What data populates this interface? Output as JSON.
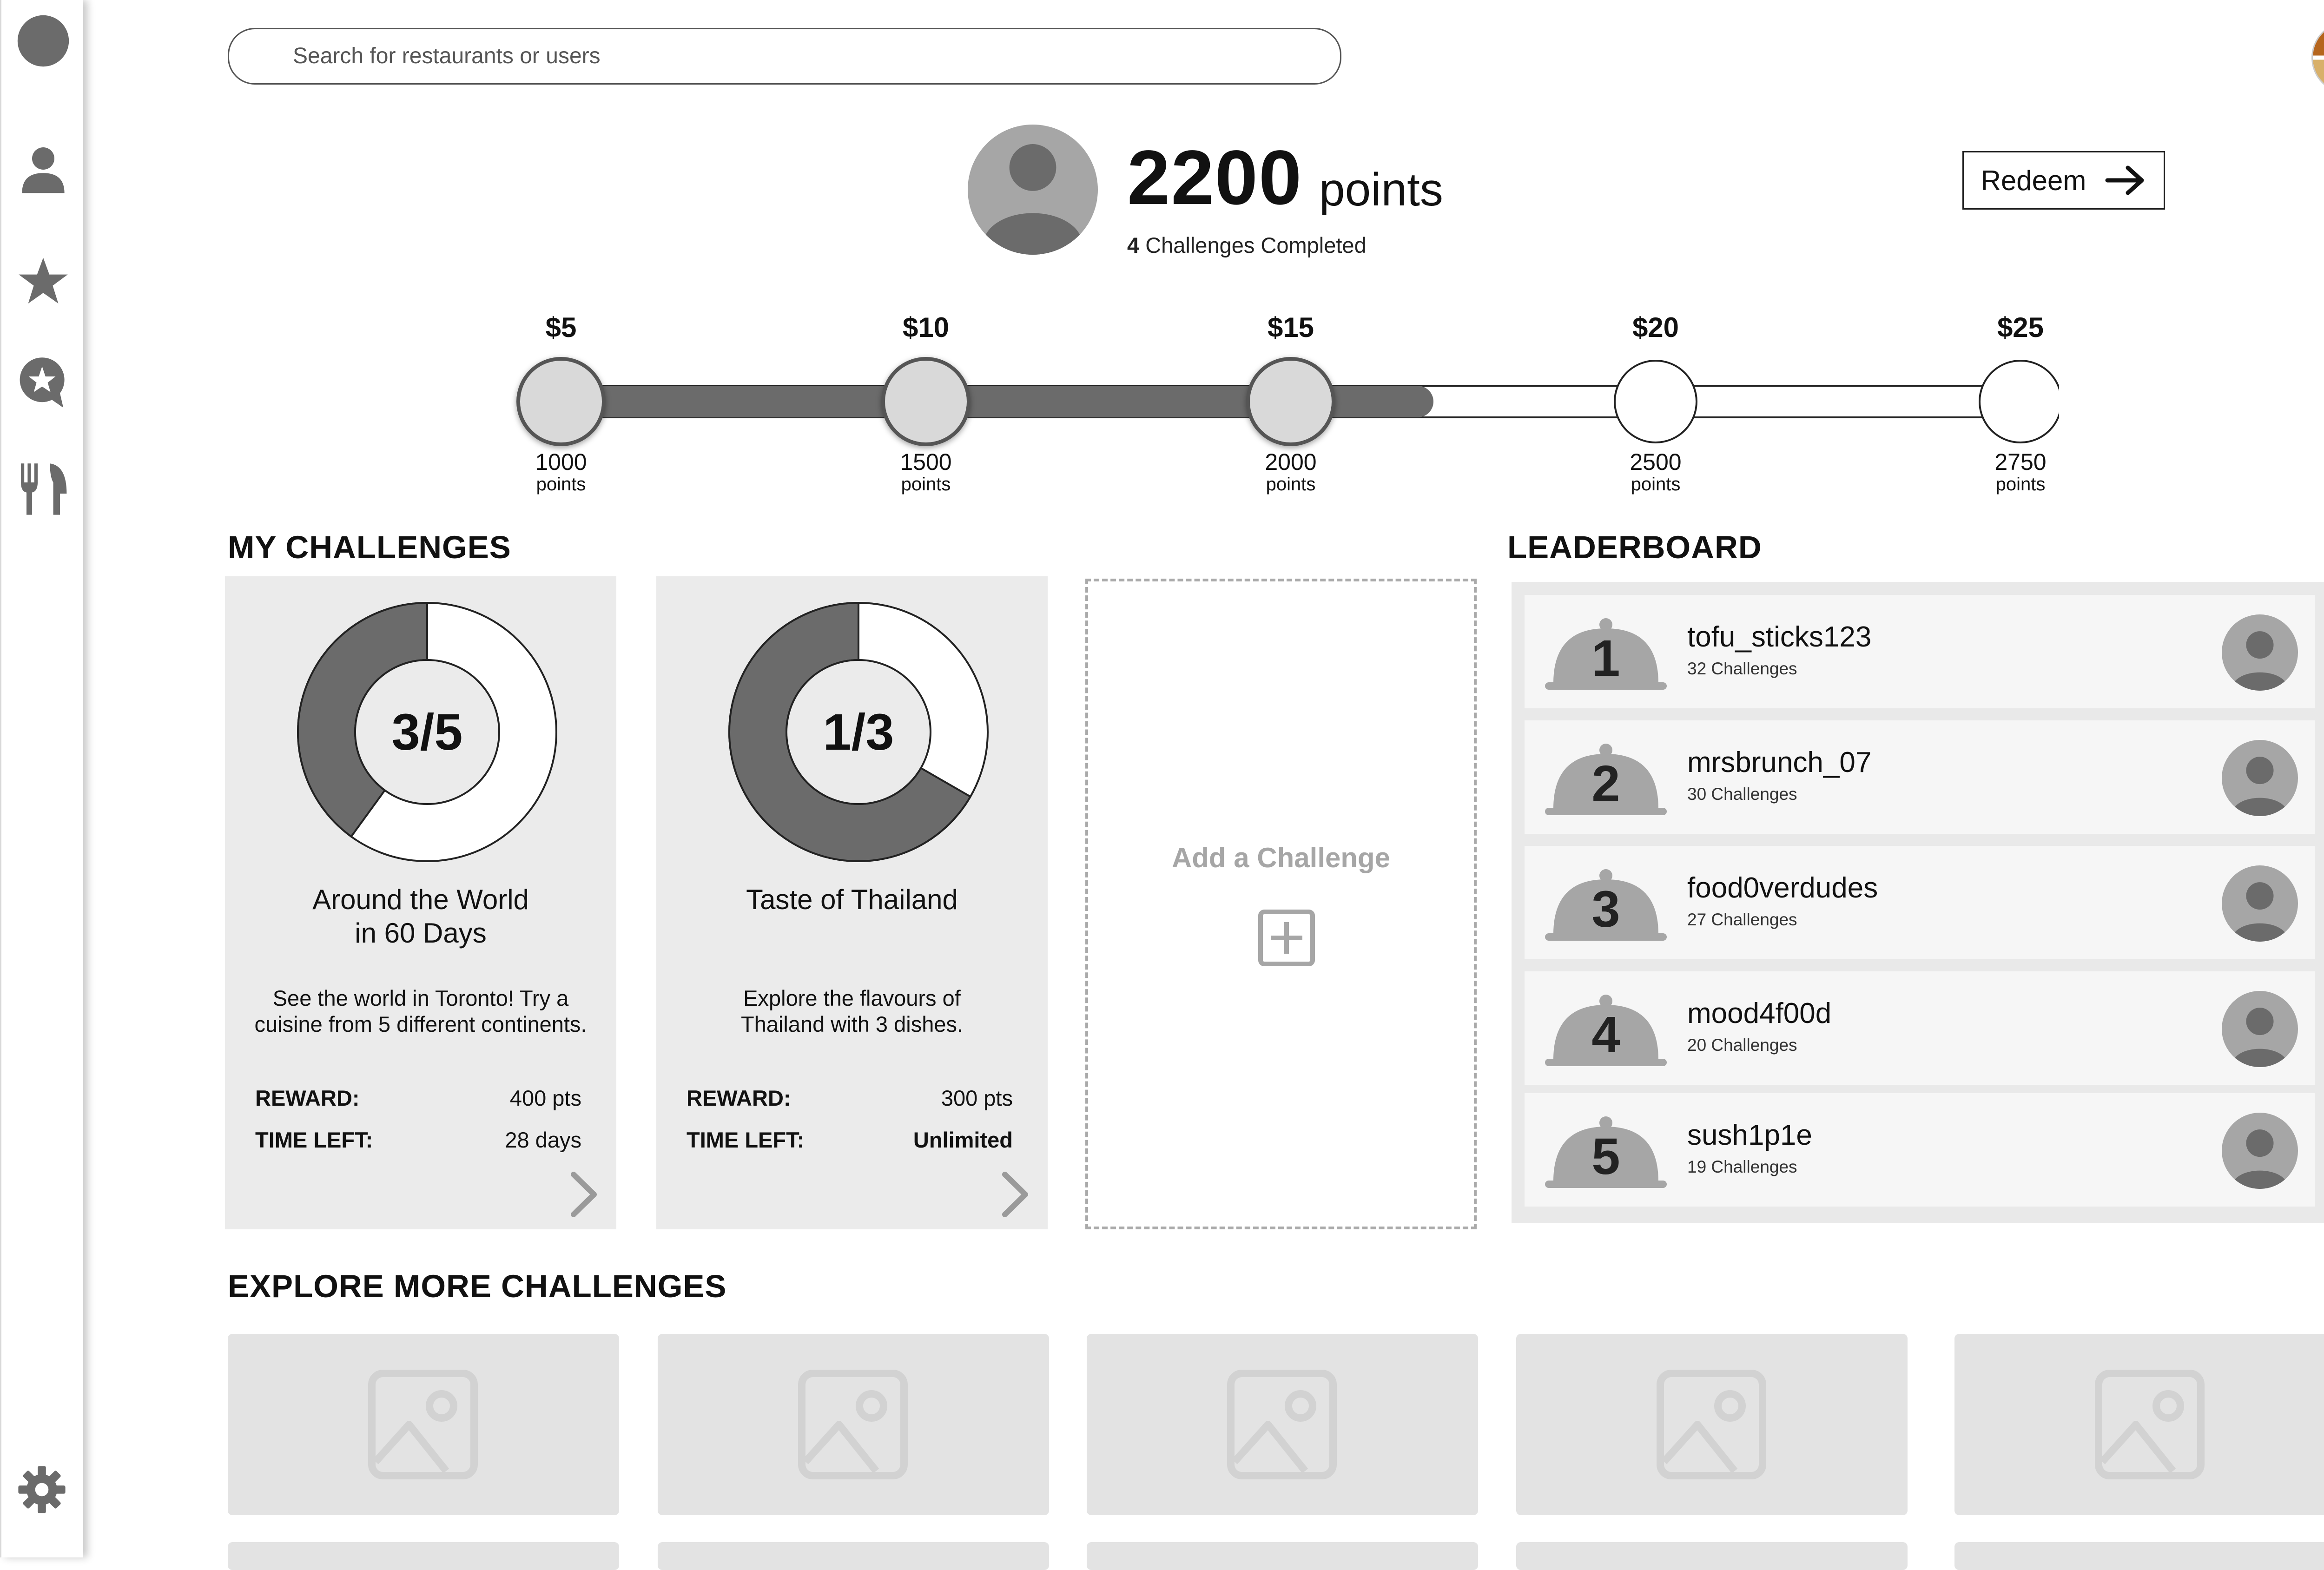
{
  "search": {
    "placeholder": "Search for restaurants or users"
  },
  "sidebar": {
    "items": [
      {
        "icon": "avatar-icon"
      },
      {
        "icon": "user-icon"
      },
      {
        "icon": "star-icon"
      },
      {
        "icon": "review-bubble-icon"
      },
      {
        "icon": "fork-knife-icon"
      }
    ],
    "bottom_icon": "gear-icon"
  },
  "header": {
    "points_value": "2200",
    "points_unit": "points",
    "challenges_completed_count": "4",
    "challenges_completed_label": "Challenges Completed",
    "redeem_label": "Redeem"
  },
  "progress": {
    "current_points": 2200,
    "milestones": [
      {
        "price": "$5",
        "points": "1000",
        "unit": "points",
        "reached": true
      },
      {
        "price": "$10",
        "points": "1500",
        "unit": "points",
        "reached": true
      },
      {
        "price": "$15",
        "points": "2000",
        "unit": "points",
        "reached": true
      },
      {
        "price": "$20",
        "points": "2500",
        "unit": "points",
        "reached": false
      },
      {
        "price": "$25",
        "points": "2750",
        "unit": "points",
        "reached": false
      }
    ]
  },
  "my_challenges": {
    "title": "MY CHALLENGES",
    "cards": [
      {
        "ratio": "3/5",
        "done": 3,
        "total": 5,
        "title_line1": "Around the World",
        "title_line2": "in 60 Days",
        "description": "See the world in Toronto! Try a cuisine from 5 different continents.",
        "reward_label": "REWARD:",
        "reward_value": "400",
        "reward_unit": "pts",
        "time_label": "TIME LEFT:",
        "time_value": "28",
        "time_unit": "days"
      },
      {
        "ratio": "1/3",
        "done": 1,
        "total": 3,
        "title_line1": "Taste of Thailand",
        "title_line2": "",
        "description": "Explore the flavours of Thailand with 3 dishes.",
        "reward_label": "REWARD:",
        "reward_value": "300",
        "reward_unit": "pts",
        "time_label": "TIME LEFT:",
        "time_value": "Unlimited",
        "time_unit": ""
      }
    ],
    "add_label": "Add a Challenge"
  },
  "leaderboard": {
    "title": "LEADERBOARD",
    "entries": [
      {
        "rank": "1",
        "name": "tofu_sticks123",
        "count": "32 Challenges"
      },
      {
        "rank": "2",
        "name": "mrsbrunch_07",
        "count": "30 Challenges"
      },
      {
        "rank": "3",
        "name": "food0verdudes",
        "count": "27 Challenges"
      },
      {
        "rank": "4",
        "name": "mood4f00d",
        "count": "20 Challenges"
      },
      {
        "rank": "5",
        "name": "sush1p1e",
        "count": "19 Challenges"
      }
    ]
  },
  "explore": {
    "title": "EXPLORE  MORE CHALLENGES"
  },
  "colors": {
    "dark": "#6b6b6b",
    "light": "#d9d9d9",
    "panel": "#ebebeb",
    "muted": "#a6a6a6"
  }
}
